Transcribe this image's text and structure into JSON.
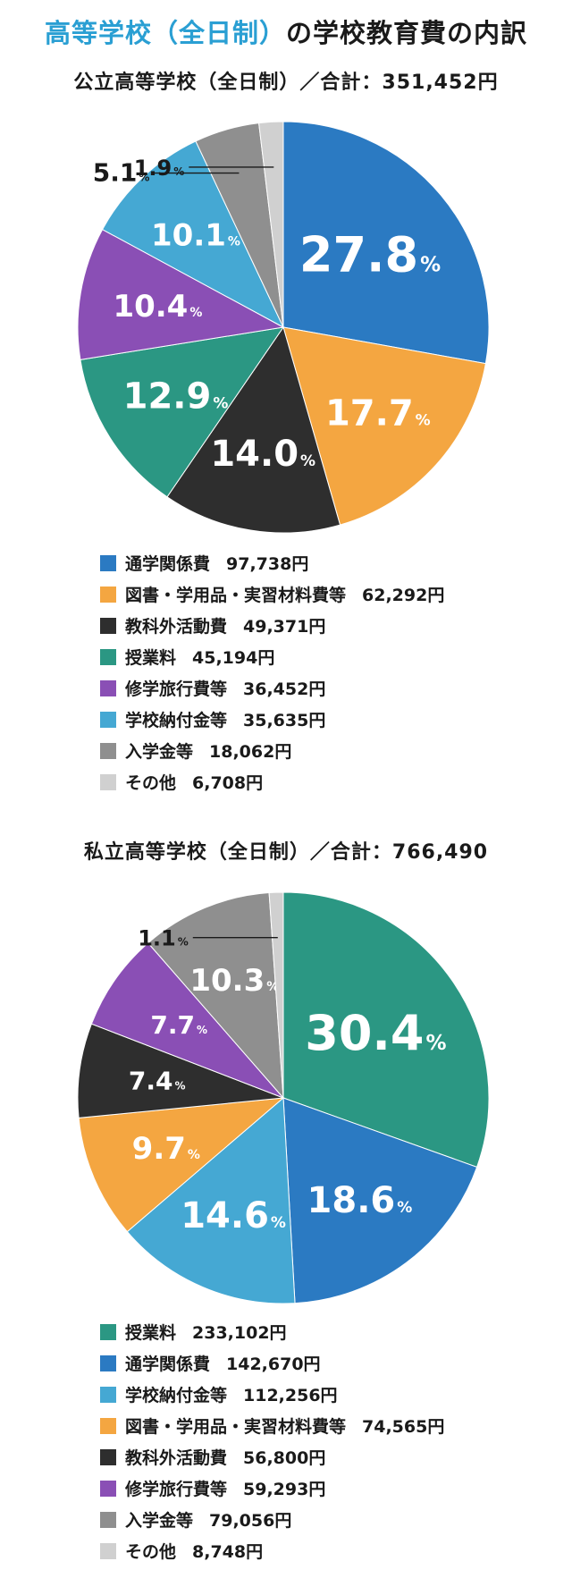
{
  "header": {
    "title_accent": "高等学校（全日制）",
    "title_rest": "の学校教育費の内訳"
  },
  "chart_data": [
    {
      "type": "pie",
      "title": "公立高等学校（全日制）／合計：351,452円",
      "unit": "%",
      "slices": [
        {
          "label": "通学関係費",
          "amount": "97,738円",
          "percent": 27.8,
          "color": "#2b7ac2"
        },
        {
          "label": "図書・学用品・実習材料費等",
          "amount": "62,292円",
          "percent": 17.7,
          "color": "#f4a641"
        },
        {
          "label": "教科外活動費",
          "amount": "49,371円",
          "percent": 14.0,
          "color": "#2e2e2e"
        },
        {
          "label": "授業料",
          "amount": "45,194円",
          "percent": 12.9,
          "color": "#2b9783"
        },
        {
          "label": "修学旅行費等",
          "amount": "36,452円",
          "percent": 10.4,
          "color": "#8a4fb5"
        },
        {
          "label": "学校納付金等",
          "amount": "35,635円",
          "percent": 10.1,
          "color": "#45a8d3"
        },
        {
          "label": "入学金等",
          "amount": "18,062円",
          "percent": 5.1,
          "color": "#8f8f8f"
        },
        {
          "label": "その他",
          "amount": "6,708円",
          "percent": 1.9,
          "color": "#d0d0d0"
        }
      ]
    },
    {
      "type": "pie",
      "title": "私立高等学校（全日制）／合計：766,490",
      "unit": "%",
      "slices": [
        {
          "label": "授業料",
          "amount": "233,102円",
          "percent": 30.4,
          "color": "#2b9783"
        },
        {
          "label": "通学関係費",
          "amount": "142,670円",
          "percent": 18.6,
          "color": "#2b7ac2"
        },
        {
          "label": "学校納付金等",
          "amount": "112,256円",
          "percent": 14.6,
          "color": "#45a8d3"
        },
        {
          "label": "図書・学用品・実習材料費等",
          "amount": "74,565円",
          "percent": 9.7,
          "color": "#f4a641"
        },
        {
          "label": "教科外活動費",
          "amount": "56,800円",
          "percent": 7.4,
          "color": "#2e2e2e"
        },
        {
          "label": "修学旅行費等",
          "amount": "59,293円",
          "percent": 7.7,
          "color": "#8a4fb5"
        },
        {
          "label": "入学金等",
          "amount": "79,056円",
          "percent": 10.3,
          "color": "#8f8f8f"
        },
        {
          "label": "その他",
          "amount": "8,748円",
          "percent": 1.1,
          "color": "#d0d0d0"
        }
      ]
    }
  ]
}
